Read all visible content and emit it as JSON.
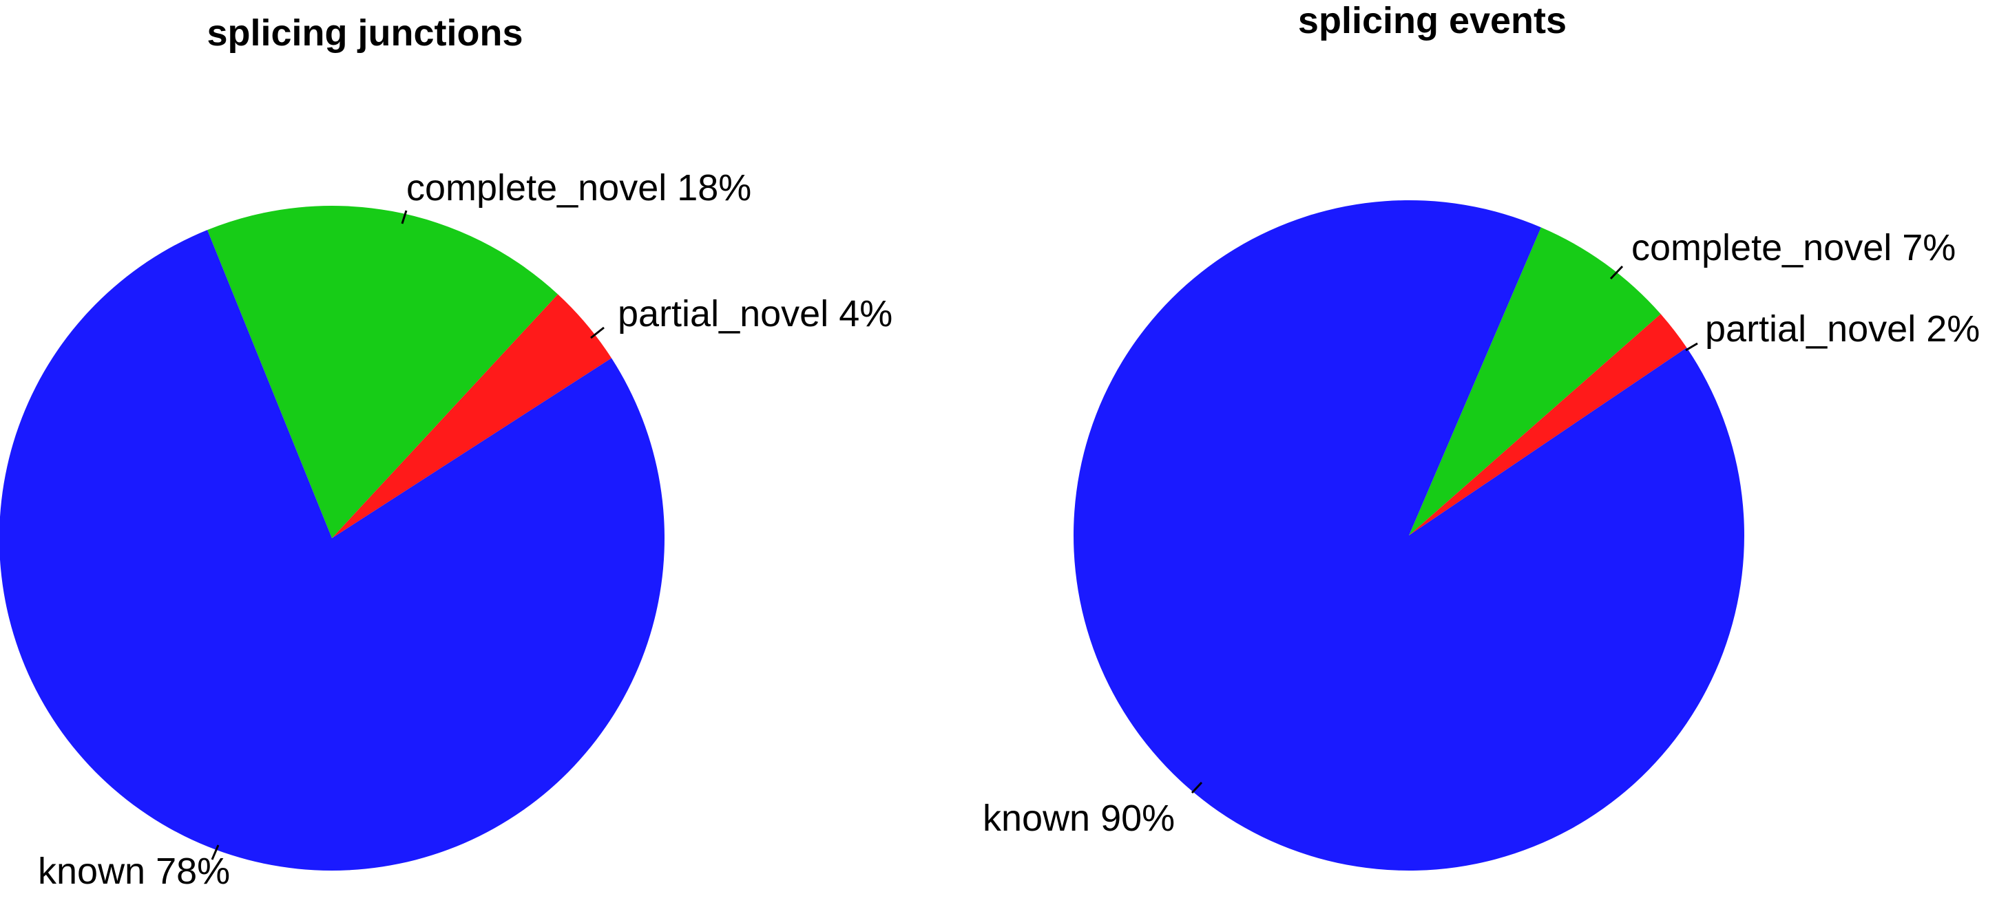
{
  "chart_data": [
    {
      "type": "pie",
      "title": "splicing junctions",
      "slices": [
        {
          "label": "known 78%",
          "value": 78,
          "color": "#1a1aff"
        },
        {
          "label": "complete_novel 18%",
          "value": 18,
          "color": "#17cc17"
        },
        {
          "label": "partial_novel 4%",
          "value": 4,
          "color": "#ff1a1a"
        }
      ]
    },
    {
      "type": "pie",
      "title": "splicing events",
      "slices": [
        {
          "label": "known 90%",
          "value": 90,
          "color": "#1a1aff"
        },
        {
          "label": "complete_novel 7%",
          "value": 7,
          "color": "#17cc17"
        },
        {
          "label": "partial_novel 2%",
          "value": 2,
          "color": "#ff1a1a"
        }
      ]
    }
  ]
}
